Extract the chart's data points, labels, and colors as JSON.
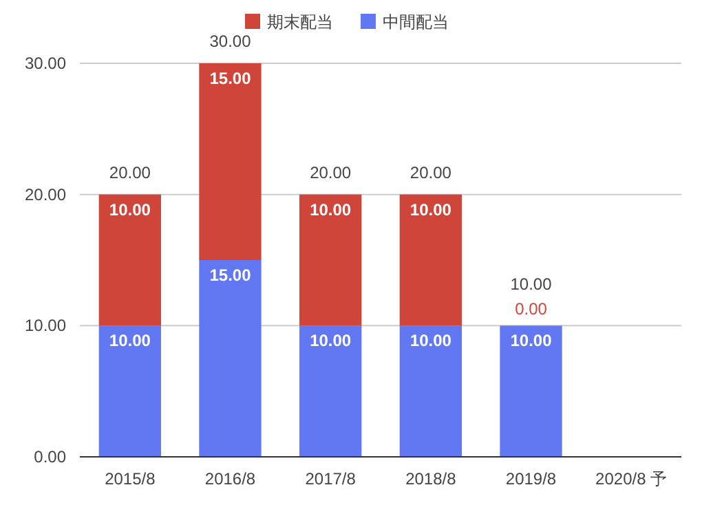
{
  "chart_data": {
    "type": "bar",
    "stacked": true,
    "categories": [
      "2015/8",
      "2016/8",
      "2017/8",
      "2018/8",
      "2019/8",
      "2020/8 予"
    ],
    "series": [
      {
        "name": "中間配当",
        "color": "#6178f2",
        "values": [
          10,
          15,
          10,
          10,
          10,
          null
        ],
        "value_labels": [
          "10.00",
          "15.00",
          "10.00",
          "10.00",
          "10.00",
          null
        ]
      },
      {
        "name": "期末配当",
        "color": "#d0453a",
        "values": [
          10,
          15,
          10,
          10,
          0,
          null
        ],
        "value_labels": [
          "10.00",
          "15.00",
          "10.00",
          "10.00",
          "0.00",
          null
        ]
      }
    ],
    "totals": [
      "20.00",
      "30.00",
      "20.00",
      "20.00",
      "10.00",
      null
    ],
    "ylim": [
      0,
      30
    ],
    "yticks": [
      {
        "value": 0,
        "label": "0.00"
      },
      {
        "value": 10,
        "label": "10.00"
      },
      {
        "value": 20,
        "label": "20.00"
      },
      {
        "value": 30,
        "label": "30.00"
      }
    ],
    "grid": "y",
    "legend": "top"
  }
}
